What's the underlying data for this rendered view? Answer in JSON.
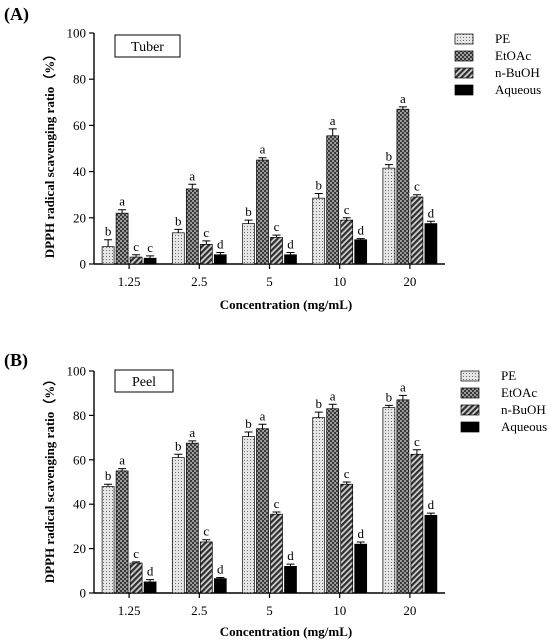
{
  "colors": {
    "PE": "#d9d9d9",
    "EtOAc": "#5a5a5a",
    "n-BuOH": "#7a7a7a",
    "Aqueous": "#000000"
  },
  "chart_data": [
    {
      "type": "bar",
      "panel_label": "(A)",
      "box_label": "Tuber",
      "xlabel": "Concentration (mg/mL)",
      "ylabel": "DPPH radical scavenging ratio（%）",
      "ylim": [
        0,
        100
      ],
      "yticks": [
        0,
        20,
        40,
        60,
        80,
        100
      ],
      "categories": [
        "1.25",
        "2.5",
        "5",
        "10",
        "20"
      ],
      "legend_position": "top-right",
      "series": [
        {
          "name": "PE",
          "values": [
            7.5,
            13.5,
            17.5,
            28.5,
            41.5
          ],
          "errors": [
            3,
            1.5,
            1.5,
            2,
            1.5
          ],
          "letters": [
            "b",
            "b",
            "b",
            "b",
            "b"
          ]
        },
        {
          "name": "EtOAc",
          "values": [
            22,
            32.5,
            45,
            55.5,
            67
          ],
          "errors": [
            1.5,
            2,
            1,
            3,
            1
          ],
          "letters": [
            "a",
            "a",
            "a",
            "a",
            "a"
          ]
        },
        {
          "name": "n-BuOH",
          "values": [
            3,
            8.5,
            11.5,
            19,
            29
          ],
          "errors": [
            1,
            1.5,
            1,
            1,
            1
          ],
          "letters": [
            "c",
            "c",
            "c",
            "c",
            "c"
          ]
        },
        {
          "name": "Aqueous",
          "values": [
            2.5,
            4,
            4,
            10.5,
            17.5
          ],
          "errors": [
            1,
            1,
            1,
            0.5,
            1
          ],
          "letters": [
            "c",
            "d",
            "d",
            "d",
            "d"
          ]
        }
      ]
    },
    {
      "type": "bar",
      "panel_label": "(B)",
      "box_label": "Peel",
      "xlabel": "Concentration (mg/mL)",
      "ylabel": "DPPH radical scavenging ratio（%）",
      "ylim": [
        0,
        100
      ],
      "yticks": [
        0,
        20,
        40,
        60,
        80,
        100
      ],
      "categories": [
        "1.25",
        "2.5",
        "5",
        "10",
        "20"
      ],
      "legend_position": "top-right",
      "series": [
        {
          "name": "PE",
          "values": [
            48,
            61,
            70.5,
            79,
            83.5
          ],
          "errors": [
            1,
            1.5,
            2,
            2.5,
            1
          ],
          "letters": [
            "b",
            "b",
            "b",
            "b",
            "b"
          ]
        },
        {
          "name": "EtOAc",
          "values": [
            55,
            67.5,
            74,
            83,
            87
          ],
          "errors": [
            1,
            1,
            2,
            2,
            2
          ],
          "letters": [
            "a",
            "a",
            "a",
            "a",
            "a"
          ]
        },
        {
          "name": "n-BuOH",
          "values": [
            13.5,
            23,
            35.5,
            49,
            62.5
          ],
          "errors": [
            0.5,
            1,
            1,
            1,
            2
          ],
          "letters": [
            "c",
            "c",
            "c",
            "c",
            "c"
          ]
        },
        {
          "name": "Aqueous",
          "values": [
            5,
            6.5,
            12,
            22,
            35
          ],
          "errors": [
            1,
            0.5,
            1,
            1,
            1
          ],
          "letters": [
            "d",
            "d",
            "d",
            "d",
            "d"
          ]
        }
      ]
    }
  ]
}
